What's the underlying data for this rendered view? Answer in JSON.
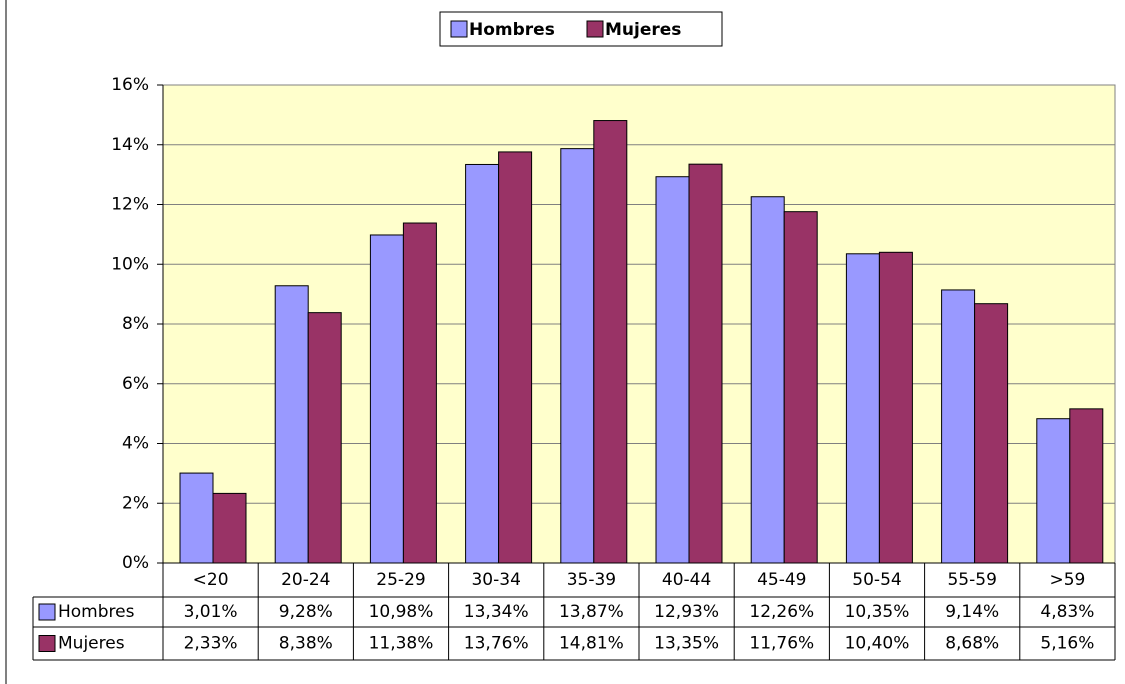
{
  "chart_data": {
    "type": "bar",
    "categories": [
      "<20",
      "20-24",
      "25-29",
      "30-34",
      "35-39",
      "40-44",
      "45-49",
      "50-54",
      "55-59",
      ">59"
    ],
    "series": [
      {
        "name": "Hombres",
        "color": "#9999ff",
        "values": [
          3.01,
          9.28,
          10.98,
          13.34,
          13.87,
          12.93,
          12.26,
          10.35,
          9.14,
          4.83
        ],
        "value_labels": [
          "3,01%",
          "9,28%",
          "10,98%",
          "13,34%",
          "13,87%",
          "12,93%",
          "12,26%",
          "10,35%",
          "9,14%",
          "4,83%"
        ]
      },
      {
        "name": "Mujeres",
        "color": "#993366",
        "values": [
          2.33,
          8.38,
          11.38,
          13.76,
          14.81,
          13.35,
          11.76,
          10.4,
          8.68,
          5.16
        ],
        "value_labels": [
          "2,33%",
          "8,38%",
          "11,38%",
          "13,76%",
          "14,81%",
          "13,35%",
          "11,76%",
          "10,40%",
          "8,68%",
          "5,16%"
        ]
      }
    ],
    "ylim": [
      0,
      16
    ],
    "yticks": [
      {
        "value": 0,
        "label": "0%"
      },
      {
        "value": 2,
        "label": "2%"
      },
      {
        "value": 4,
        "label": "4%"
      },
      {
        "value": 6,
        "label": "6%"
      },
      {
        "value": 8,
        "label": "8%"
      },
      {
        "value": 10,
        "label": "10%"
      },
      {
        "value": 12,
        "label": "12%"
      },
      {
        "value": 14,
        "label": "14%"
      },
      {
        "value": 16,
        "label": "16%"
      }
    ],
    "grid": true,
    "legend": "top",
    "background": "#ffffcc"
  }
}
